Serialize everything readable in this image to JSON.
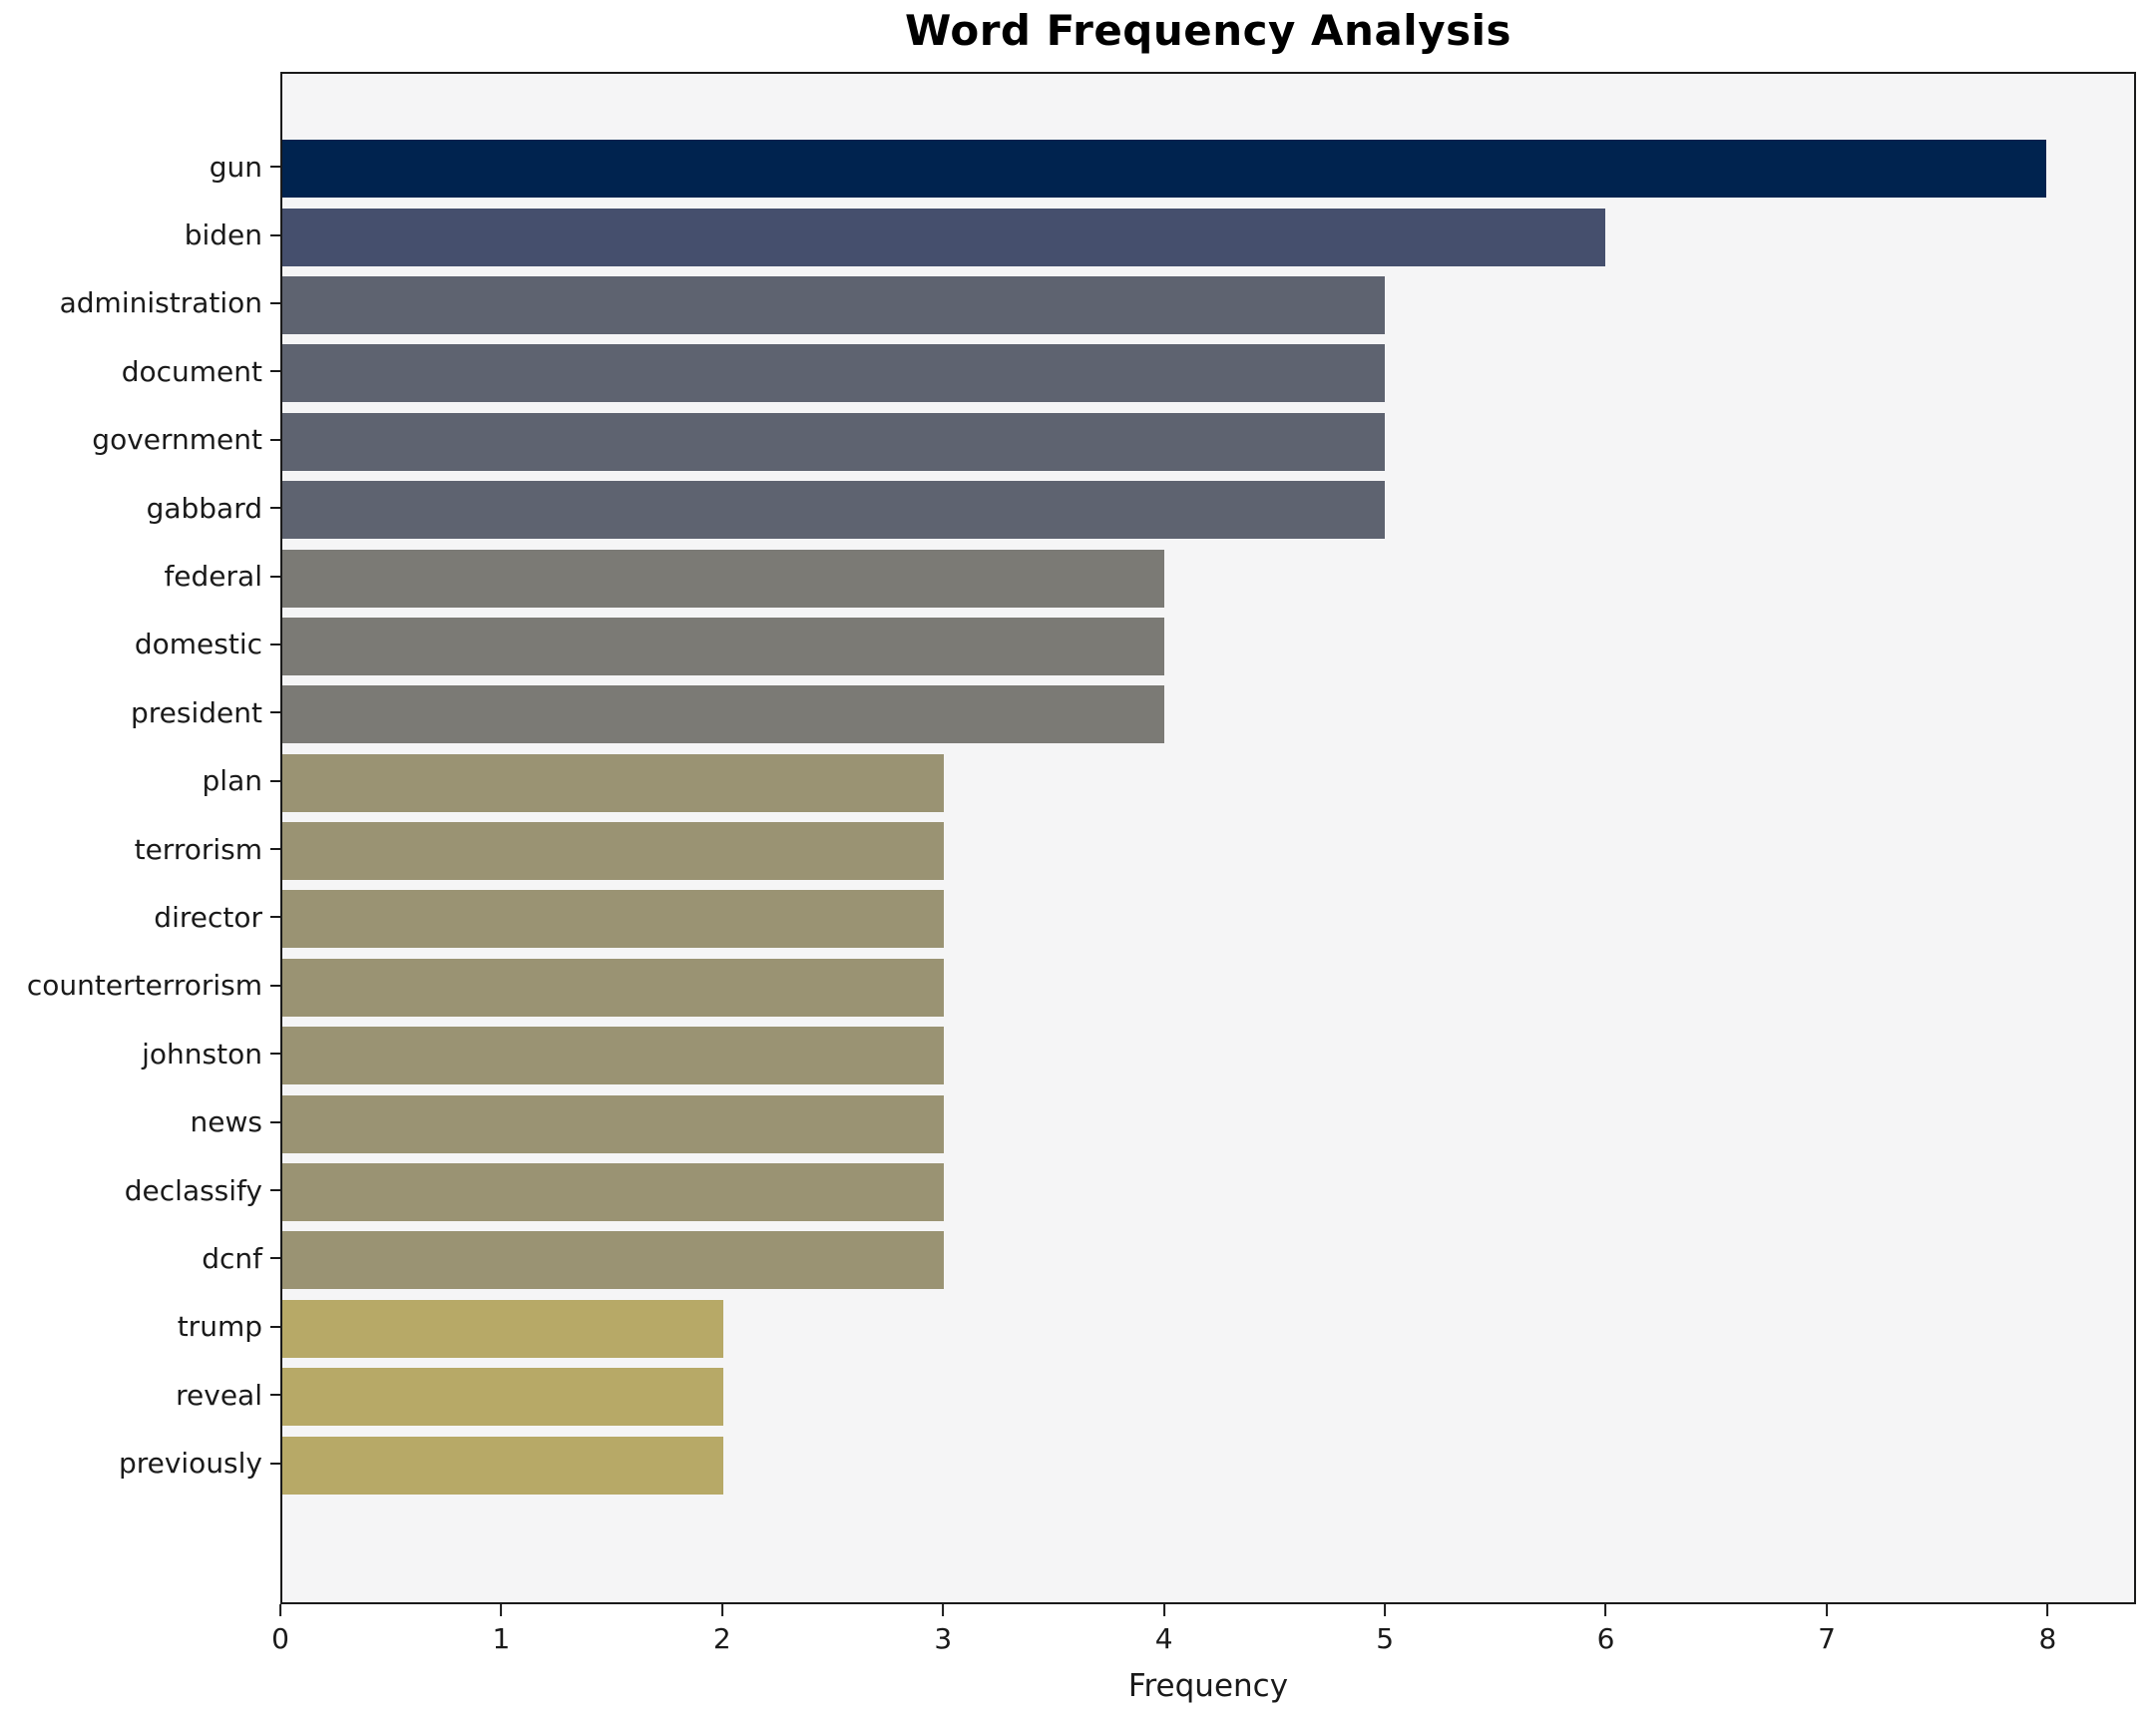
{
  "figure": {
    "background": "#ffffff",
    "plot_background": "#f5f5f6",
    "spine_color": "#1a1a1a",
    "text_color": "#1a1a1a"
  },
  "chart_data": {
    "type": "bar",
    "orientation": "horizontal",
    "title": "Word Frequency Analysis",
    "xlabel": "Frequency",
    "ylabel": "",
    "categories": [
      "gun",
      "biden",
      "administration",
      "document",
      "government",
      "gabbard",
      "federal",
      "domestic",
      "president",
      "plan",
      "terrorism",
      "director",
      "counterterrorism",
      "johnston",
      "news",
      "declassify",
      "dcnf",
      "trump",
      "reveal",
      "previously"
    ],
    "values": [
      8,
      6,
      5,
      5,
      5,
      5,
      4,
      4,
      4,
      3,
      3,
      3,
      3,
      3,
      3,
      3,
      3,
      2,
      2,
      2
    ],
    "bar_colors": [
      "#00234f",
      "#454f6d",
      "#5e6370",
      "#5e6370",
      "#5e6370",
      "#5e6370",
      "#7b7a75",
      "#7b7a75",
      "#7b7a75",
      "#9a9373",
      "#9a9373",
      "#9a9373",
      "#9a9373",
      "#9a9373",
      "#9a9373",
      "#9a9373",
      "#9a9373",
      "#b7a967",
      "#b7a967",
      "#b7a967"
    ],
    "xlim": [
      0,
      8.4
    ],
    "xticks": [
      0,
      1,
      2,
      3,
      4,
      5,
      6,
      7,
      8
    ],
    "grid": false,
    "legend": "none"
  }
}
